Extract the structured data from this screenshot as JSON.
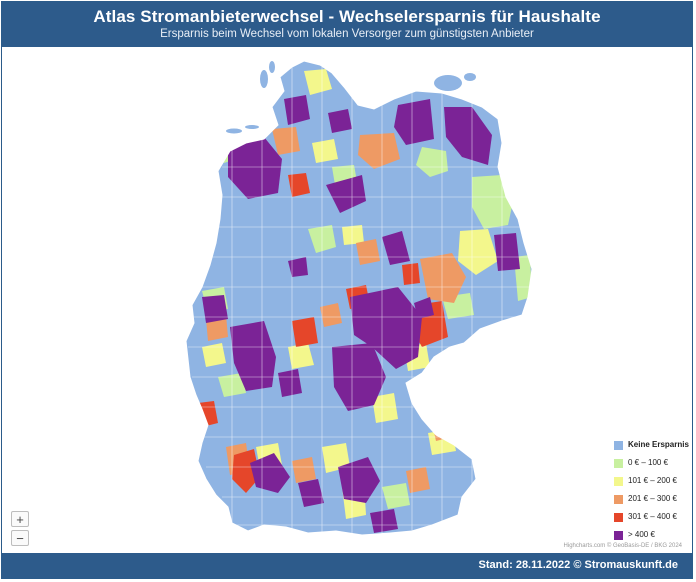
{
  "header": {
    "title": "Atlas Stromanbieterwechsel - Wechselersparnis für Haushalte",
    "subtitle": "Ersparnis beim Wechsel vom lokalen Versorger zum günstigsten Anbieter"
  },
  "legend": {
    "items": [
      {
        "label": "Keine Ersparnis",
        "color": "#8fb4e3",
        "bold": true
      },
      {
        "label": "0 € – 100 €",
        "color": "#c8f0a0"
      },
      {
        "label": "101 € – 200 €",
        "color": "#f3f78c"
      },
      {
        "label": "201 € – 300 €",
        "color": "#ee9a64"
      },
      {
        "label": "301 € – 400 €",
        "color": "#e5462a"
      },
      {
        "label": "> 400 €",
        "color": "#7b2396"
      }
    ]
  },
  "zoom": {
    "in_label": "+",
    "out_label": "−"
  },
  "credits": "Highcharts.com © GeoBasis-DE / BKG 2024",
  "footer": {
    "text": "Stand: 28.11.2022 © Stromauskunft.de"
  }
}
